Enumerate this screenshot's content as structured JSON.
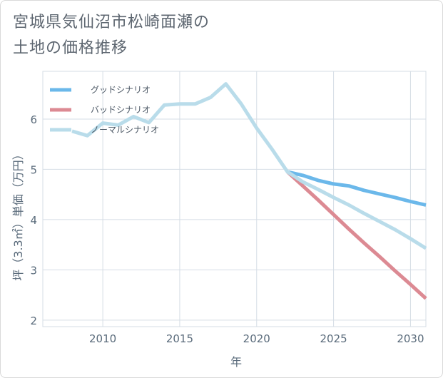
{
  "title": {
    "line1": "宮城県気仙沼市松崎面瀬の",
    "line2": "土地の価格推移"
  },
  "chart_data": {
    "type": "line",
    "xlabel": "年",
    "ylabel": "坪（3.3㎡）単価（万円）",
    "xlim": [
      2006.1,
      2031
    ],
    "ylim": [
      1.87,
      6.95
    ],
    "xticks": [
      2010,
      2015,
      2020,
      2025,
      2030
    ],
    "yticks": [
      2,
      3,
      4,
      5,
      6
    ],
    "grid": true,
    "legend_position": "top-left",
    "series": [
      {
        "name": "グッドシナリオ",
        "color": "#6bb8ea",
        "x": [
          2022,
          2023,
          2024,
          2025,
          2026,
          2027,
          2028,
          2029,
          2030,
          2031
        ],
        "values": [
          4.95,
          4.88,
          4.78,
          4.71,
          4.67,
          4.58,
          4.51,
          4.44,
          4.36,
          4.29
        ]
      },
      {
        "name": "バッドシナリオ",
        "color": "#dc8a93",
        "x": [
          2022,
          2023,
          2024,
          2025,
          2026,
          2027,
          2028,
          2029,
          2030,
          2031
        ],
        "values": [
          4.95,
          4.67,
          4.39,
          4.1,
          3.81,
          3.53,
          3.26,
          2.98,
          2.71,
          2.43
        ]
      },
      {
        "name": "ノーマルシナリオ",
        "color": "#b9dcea",
        "x": [
          2008,
          2009,
          2010,
          2011,
          2012,
          2013,
          2014,
          2015,
          2016,
          2017,
          2018,
          2019,
          2020,
          2021,
          2022,
          2023,
          2024,
          2025,
          2026,
          2027,
          2028,
          2029,
          2030,
          2031
        ],
        "values": [
          5.76,
          5.67,
          5.92,
          5.88,
          6.05,
          5.93,
          6.28,
          6.3,
          6.3,
          6.43,
          6.7,
          6.3,
          5.82,
          5.4,
          4.95,
          4.75,
          4.6,
          4.44,
          4.29,
          4.12,
          3.96,
          3.8,
          3.62,
          3.43
        ]
      }
    ]
  }
}
